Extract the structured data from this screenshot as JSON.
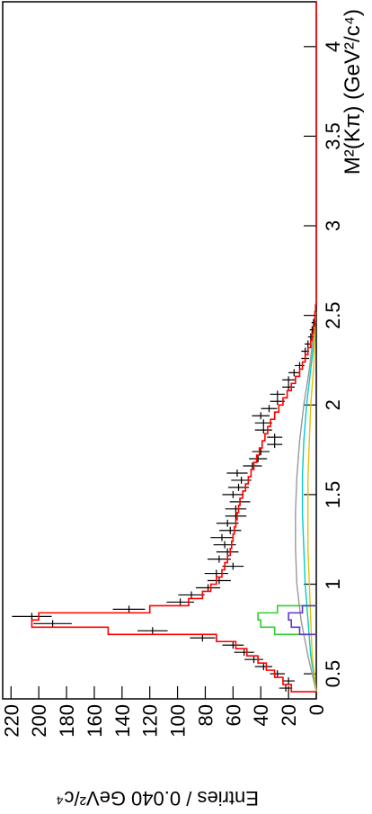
{
  "chart_data": {
    "type": "histogram",
    "xlabel": "M²(Kπ) (GeV²/c⁴)",
    "ylabel": "Entries / 0.040 GeV²/c⁴",
    "xlim": [
      0.36,
      4.25
    ],
    "ylim": [
      0,
      226
    ],
    "xticks": [
      0.5,
      1,
      1.5,
      2,
      2.5,
      3,
      3.5,
      4
    ],
    "yticks": [
      0,
      20,
      40,
      60,
      80,
      100,
      120,
      140,
      160,
      180,
      200,
      220
    ],
    "bin_width": 0.04,
    "x": [
      0.42,
      0.46,
      0.5,
      0.54,
      0.58,
      0.62,
      0.66,
      0.7,
      0.74,
      0.78,
      0.82,
      0.86,
      0.9,
      0.94,
      0.98,
      1.02,
      1.06,
      1.1,
      1.14,
      1.18,
      1.22,
      1.26,
      1.3,
      1.34,
      1.38,
      1.42,
      1.46,
      1.5,
      1.54,
      1.58,
      1.62,
      1.66,
      1.7,
      1.74,
      1.78,
      1.82,
      1.86,
      1.9,
      1.94,
      1.98,
      2.02,
      2.06,
      2.1,
      2.14,
      2.18,
      2.22,
      2.26,
      2.3,
      2.34,
      2.38,
      2.42,
      2.46,
      2.5,
      2.54
    ],
    "series": [
      {
        "style": "points",
        "color": "#000000",
        "values": [
          22,
          20,
          28,
          38,
          45,
          52,
          60,
          82,
          118,
          190,
          205,
          135,
          98,
          90,
          78,
          70,
          72,
          60,
          70,
          64,
          66,
          68,
          62,
          64,
          58,
          58,
          55,
          60,
          56,
          54,
          57,
          46,
          42,
          40,
          30,
          30,
          38,
          38,
          40,
          34,
          28,
          28,
          20,
          20,
          16,
          12,
          8,
          8,
          6,
          4,
          3,
          2,
          1,
          0
        ],
        "errors": [
          4.7,
          4.5,
          5.3,
          6.2,
          6.7,
          7.2,
          7.7,
          9.1,
          10.9,
          13.8,
          14.3,
          11.6,
          9.9,
          9.5,
          8.8,
          8.4,
          8.5,
          7.7,
          8.4,
          8,
          8.1,
          8.2,
          7.9,
          8,
          7.6,
          7.6,
          7.4,
          7.7,
          7.5,
          7.3,
          7.5,
          6.8,
          6.5,
          6.3,
          5.5,
          5.5,
          6.2,
          6.2,
          6.3,
          5.8,
          5.3,
          5.3,
          4.5,
          4.5,
          4,
          3.5,
          2.8,
          2.8,
          2.4,
          2,
          1.7,
          1.4,
          1,
          0
        ]
      },
      {
        "style": "step",
        "color": "#ff0000",
        "values": [
          18,
          24,
          30,
          36,
          42,
          50,
          58,
          72,
          150,
          205,
          200,
          120,
          92,
          82,
          76,
          72,
          68,
          66,
          64,
          62,
          61,
          60,
          59,
          58,
          57,
          56,
          55,
          53,
          51,
          49,
          47,
          45,
          43,
          41,
          39,
          37,
          35,
          33,
          30,
          27,
          24,
          21,
          18,
          15,
          12,
          10,
          8,
          6,
          4,
          3,
          2,
          1,
          1,
          0.5
        ]
      }
    ],
    "components": [
      {
        "style": "line",
        "color": "#999999",
        "x": [
          0.4,
          0.6,
          0.8,
          1.0,
          1.2,
          1.4,
          1.6,
          1.8,
          2.0,
          2.2,
          2.4,
          2.6
        ],
        "values": [
          0,
          6,
          11,
          14,
          15,
          15,
          14,
          12,
          9,
          5,
          2,
          0
        ]
      },
      {
        "style": "line",
        "color": "#00cccc",
        "x": [
          0.4,
          0.6,
          0.8,
          1.0,
          1.2,
          1.4,
          1.6,
          1.8,
          2.0,
          2.2,
          2.4,
          2.6
        ],
        "values": [
          0,
          4,
          6,
          8,
          9,
          10,
          10,
          9,
          7,
          4,
          1,
          0
        ]
      },
      {
        "style": "line",
        "color": "#e8c000",
        "x": [
          0.4,
          0.6,
          0.8,
          1.0,
          1.2,
          1.4,
          1.6,
          1.8,
          2.0,
          2.2,
          2.4,
          2.6
        ],
        "values": [
          0,
          3,
          4,
          5,
          6,
          6,
          6,
          5,
          4,
          2,
          1,
          0
        ]
      },
      {
        "style": "step",
        "color": "#33cc33",
        "x": [
          0.74,
          0.78,
          0.82,
          0.86
        ],
        "values": [
          30,
          40,
          42,
          28
        ]
      },
      {
        "style": "step",
        "color": "#6633cc",
        "x": [
          0.74,
          0.78,
          0.82,
          0.86
        ],
        "values": [
          12,
          18,
          20,
          10
        ]
      }
    ]
  }
}
